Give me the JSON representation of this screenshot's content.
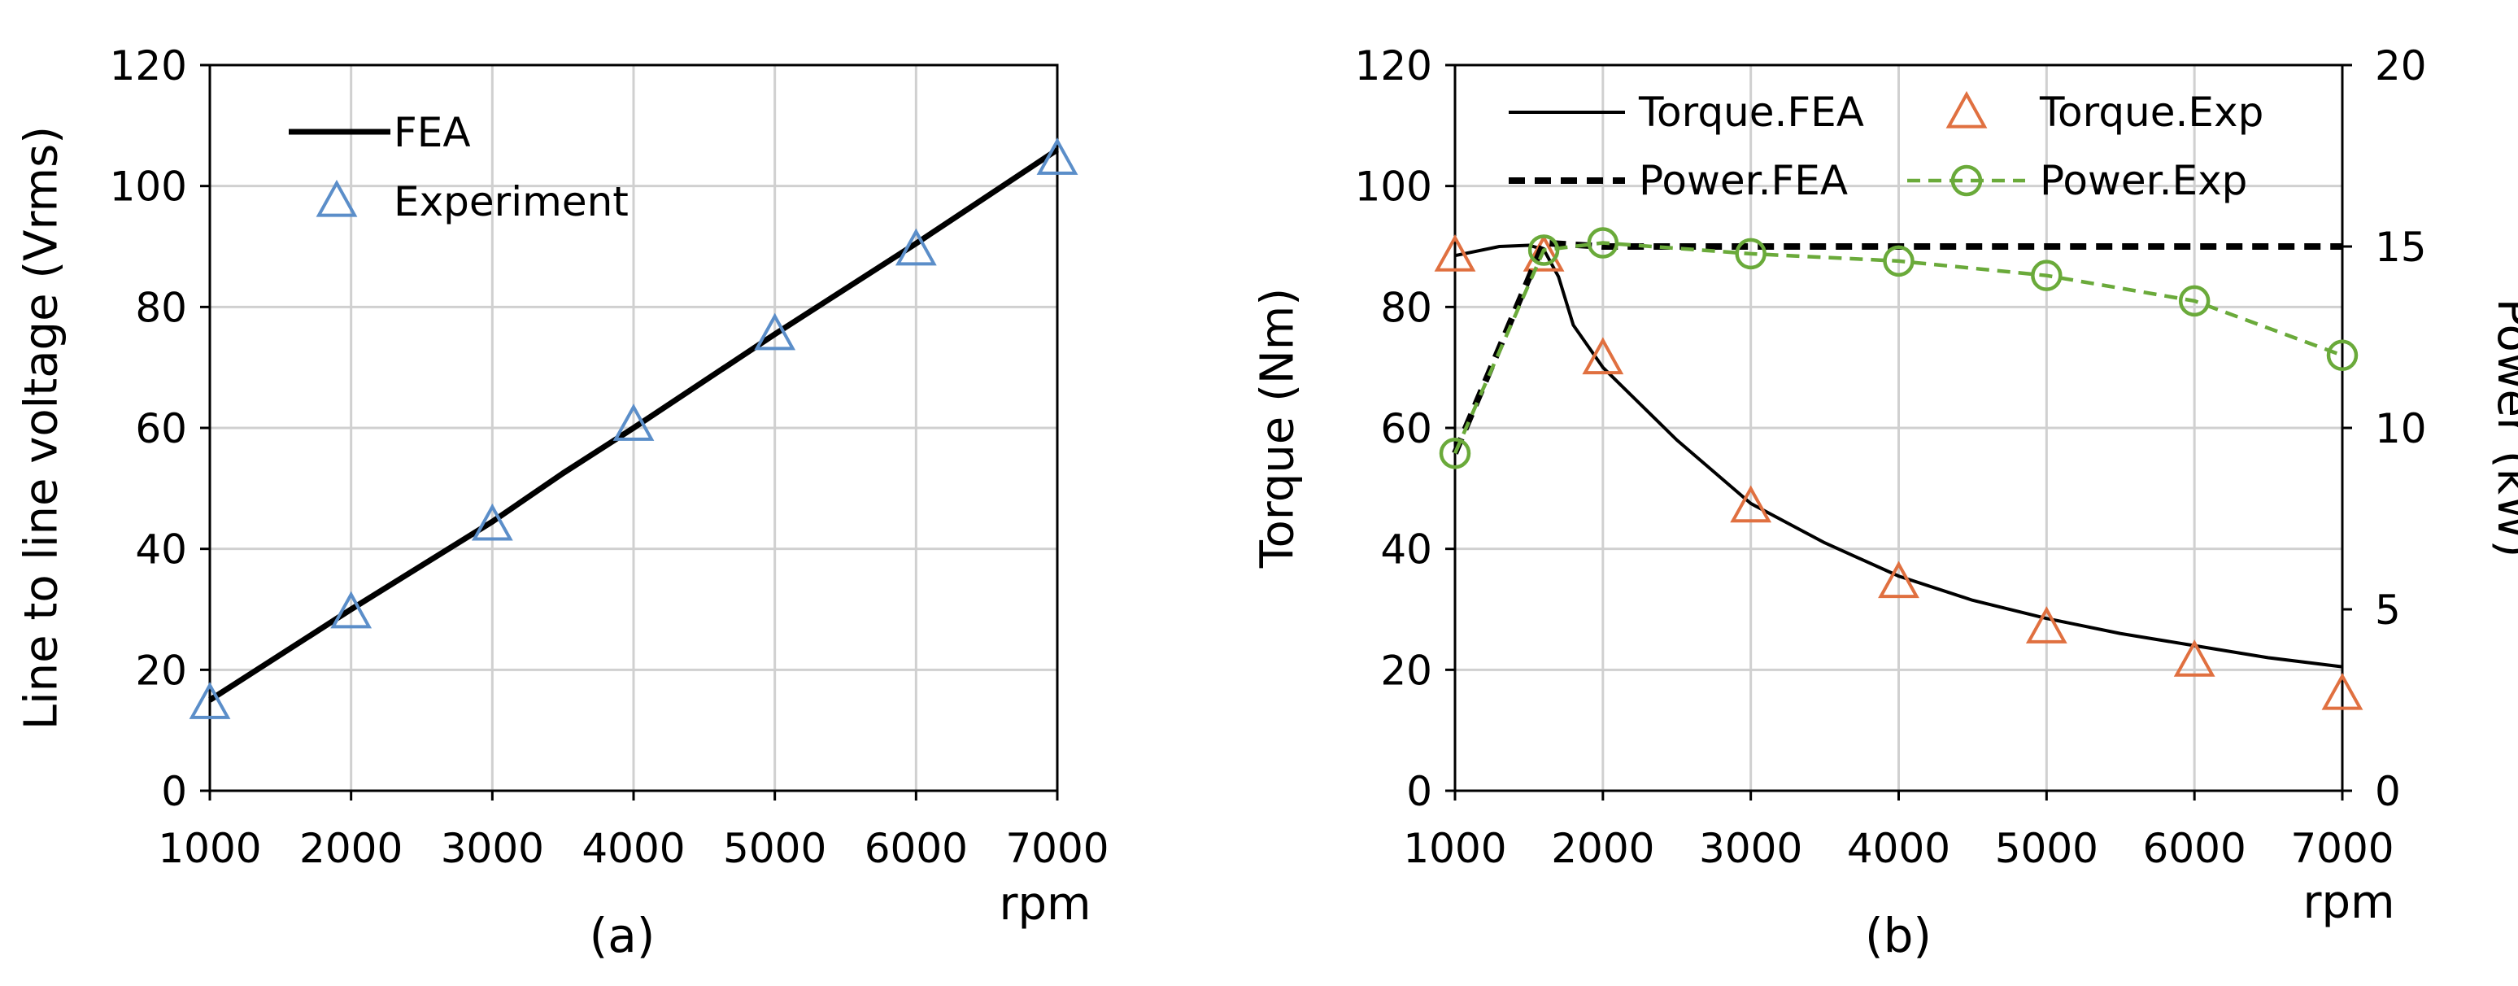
{
  "chart_data": [
    {
      "type": "line",
      "panel_label": "(a)",
      "xlabel": "rpm",
      "ylabel": "Line to line voltage (Vrms)",
      "xlim": [
        1000,
        7000
      ],
      "ylim": [
        0,
        120
      ],
      "x_ticks": [
        "1000",
        "2000",
        "3000",
        "4000",
        "5000",
        "6000",
        "7000"
      ],
      "y_ticks": [
        "0",
        "20",
        "40",
        "60",
        "80",
        "100",
        "120"
      ],
      "grid": true,
      "legend_position": "top-left",
      "series": [
        {
          "name": "FEA",
          "style": "line",
          "color": "#000000",
          "x": [
            1000,
            2000,
            3000,
            3500,
            4000,
            5000,
            6000,
            7000
          ],
          "y": [
            15,
            30,
            44.5,
            52.5,
            60,
            75.5,
            90.5,
            106
          ]
        },
        {
          "name": "Experiment",
          "style": "triangle",
          "color": "#5b8ec9",
          "x": [
            1000,
            2000,
            3000,
            4000,
            5000,
            6000,
            7000
          ],
          "y": [
            14.5,
            29.5,
            44,
            60.5,
            75.5,
            89.5,
            104.5
          ]
        }
      ]
    },
    {
      "type": "line",
      "panel_label": "(b)",
      "xlabel": "rpm",
      "ylabel": "Torque (Nm)",
      "y2label": "Power (kW)",
      "xlim": [
        1000,
        7000
      ],
      "ylim": [
        0,
        120
      ],
      "y2lim": [
        0,
        20
      ],
      "x_ticks": [
        "1000",
        "2000",
        "3000",
        "4000",
        "5000",
        "6000",
        "7000"
      ],
      "y_ticks": [
        "0",
        "20",
        "40",
        "60",
        "80",
        "100",
        "120"
      ],
      "y2_ticks": [
        "0",
        "5",
        "10",
        "15",
        "20"
      ],
      "grid": true,
      "legend_position": "top",
      "series": [
        {
          "name": "Torque.FEA",
          "style": "line",
          "axis": "left",
          "color": "#000000",
          "x": [
            1000,
            1300,
            1500,
            1600,
            1700,
            1800,
            2000,
            2500,
            3000,
            3500,
            4000,
            4500,
            5000,
            5500,
            6000,
            6500,
            7000
          ],
          "y": [
            88.5,
            90,
            90.2,
            89.5,
            85,
            77,
            70,
            58,
            47.5,
            41,
            35.5,
            31.5,
            28.5,
            26,
            24,
            22,
            20.5
          ]
        },
        {
          "name": "Torque.Exp",
          "style": "triangle",
          "axis": "left",
          "color": "#e07040",
          "x": [
            1000,
            1600,
            2000,
            3000,
            4000,
            5000,
            6000,
            7000
          ],
          "y": [
            88.5,
            88.5,
            71.5,
            47,
            34.5,
            27,
            21.5,
            16
          ]
        },
        {
          "name": "Power.FEA",
          "style": "dashed",
          "axis": "right",
          "color": "#000000",
          "x": [
            1000,
            1600,
            2000,
            3000,
            4000,
            5000,
            6000,
            7000
          ],
          "y": [
            9.3,
            15.1,
            15.0,
            15.0,
            15.0,
            15.0,
            15.0,
            15.0
          ]
        },
        {
          "name": "Power.Exp",
          "style": "dashed-circle",
          "axis": "right",
          "color": "#6aaa3a",
          "x": [
            1000,
            1600,
            2000,
            3000,
            4000,
            5000,
            6000,
            7000
          ],
          "y": [
            9.3,
            14.9,
            15.1,
            14.8,
            14.6,
            14.2,
            13.5,
            12.0
          ]
        }
      ]
    }
  ]
}
